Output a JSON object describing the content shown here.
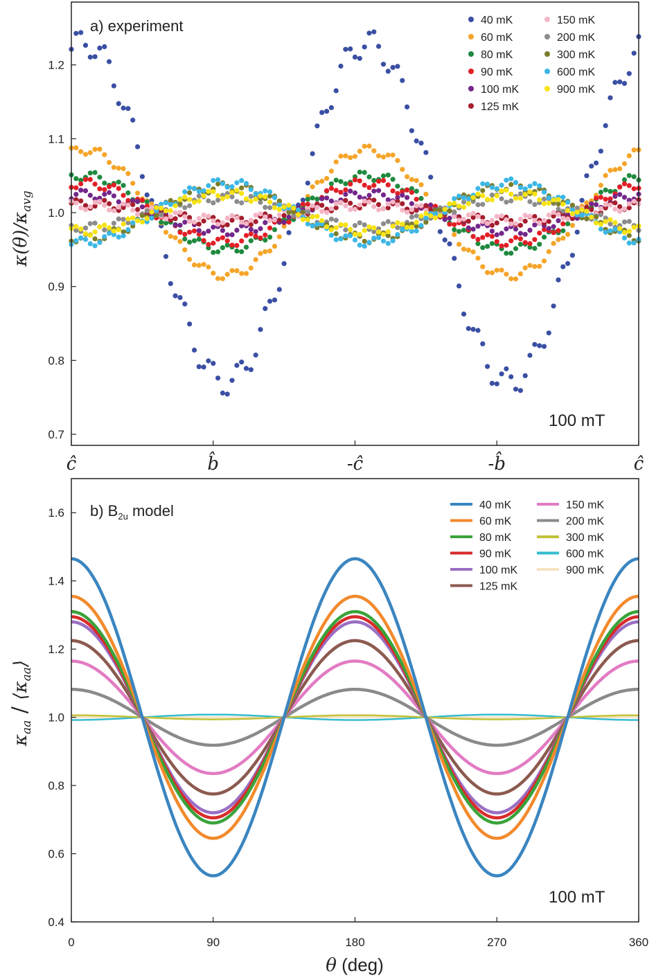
{
  "chart_data": [
    {
      "type": "scatter",
      "panel": "a",
      "title": "a) experiment",
      "ylabel": "κ(θ)/κavg",
      "ylabel_main": "κ(θ)/κ",
      "ylabel_sub": "avg",
      "xlim": [
        0,
        360
      ],
      "ylim": [
        0.685,
        1.285
      ],
      "yticks": [
        0.7,
        0.8,
        0.9,
        1.0,
        1.1,
        1.2
      ],
      "xtick_positions": [
        0,
        90,
        180,
        270,
        360
      ],
      "xtick_labels": [
        {
          "prefix": "",
          "sym": "ĉ"
        },
        {
          "prefix": "",
          "sym": "b̂"
        },
        {
          "prefix": "-",
          "sym": "ĉ"
        },
        {
          "prefix": "-",
          "sym": "b̂"
        },
        {
          "prefix": "",
          "sym": "ĉ"
        }
      ],
      "annotation": "100 mT",
      "legend_position": "top-right",
      "series": [
        {
          "name": "40 mK",
          "color": "#3a4fa3",
          "amplitude": 0.23
        },
        {
          "name": "60 mK",
          "color": "#f5a52a",
          "amplitude": 0.085
        },
        {
          "name": "80 mK",
          "color": "#1f8a3f",
          "amplitude": 0.05
        },
        {
          "name": "90 mK",
          "color": "#e21f26",
          "amplitude": 0.04
        },
        {
          "name": "100 mK",
          "color": "#73278a",
          "amplitude": 0.025
        },
        {
          "name": "125 mK",
          "color": "#a51e2d",
          "amplitude": 0.012
        },
        {
          "name": "150 mK",
          "color": "#f4b6c6",
          "amplitude": 0.01
        },
        {
          "name": "200 mK",
          "color": "#8c8c8c",
          "amplitude": -0.02
        },
        {
          "name": "300 mK",
          "color": "#7c7d2c",
          "amplitude": -0.035
        },
        {
          "name": "600 mK",
          "color": "#3cb7e6",
          "amplitude": -0.04
        },
        {
          "name": "900 mK",
          "color": "#f7e312",
          "amplitude": -0.025
        }
      ]
    },
    {
      "type": "line",
      "panel": "b",
      "title_prefix": "b) B",
      "title_sub": "2u",
      "title_suffix": " model",
      "title": "b) B2u model",
      "ylabel": "κaa/⟨κaa⟩",
      "ylabel_num": "κ",
      "ylabel_num_sub": "aa",
      "ylabel_den": "⟨κ",
      "ylabel_den_sub": "aa",
      "ylabel_den_close": "⟩",
      "xlabel": "θ (deg)",
      "xlabel_sym": "θ",
      "xlabel_rest": " (deg)",
      "xlim": [
        0,
        360
      ],
      "ylim": [
        0.4,
        1.7
      ],
      "yticks": [
        0.4,
        0.6,
        0.8,
        1.0,
        1.2,
        1.4,
        1.6
      ],
      "xticks": [
        0,
        90,
        180,
        270,
        360
      ],
      "xtick_labels": [
        "0",
        "90",
        "180",
        "270",
        "360"
      ],
      "annotation": "100 mT",
      "legend_position": "top-right",
      "model": "y = 1 + A·cos(2θ)",
      "series": [
        {
          "name": "40 mK",
          "color": "#3a85c0",
          "amplitude": 0.465
        },
        {
          "name": "60 mK",
          "color": "#f28a2c",
          "amplitude": 0.355
        },
        {
          "name": "80 mK",
          "color": "#3aa33a",
          "amplitude": 0.31
        },
        {
          "name": "90 mK",
          "color": "#d92b2b",
          "amplitude": 0.295
        },
        {
          "name": "100 mK",
          "color": "#9a6fc3",
          "amplitude": 0.28
        },
        {
          "name": "125 mK",
          "color": "#8c5a4f",
          "amplitude": 0.225
        },
        {
          "name": "150 mK",
          "color": "#e27bc3",
          "amplitude": 0.165
        },
        {
          "name": "200 mK",
          "color": "#8a8a8a",
          "amplitude": 0.082
        },
        {
          "name": "300 mK",
          "color": "#c2c23a",
          "amplitude": 0.006
        },
        {
          "name": "600 mK",
          "color": "#35bcd0",
          "amplitude": -0.008
        },
        {
          "name": "900 mK",
          "color": "#f6e3c2",
          "amplitude": 0.0
        }
      ]
    }
  ]
}
